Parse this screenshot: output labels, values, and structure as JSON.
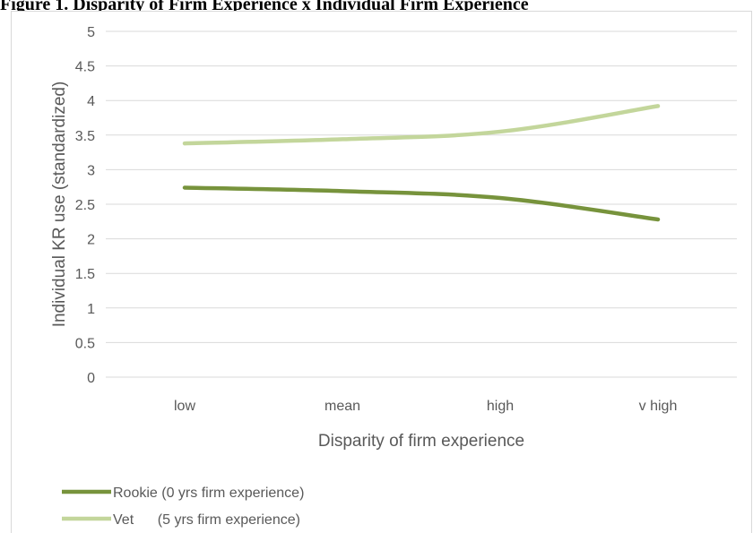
{
  "caption": "Figure 1. Disparity of Firm Experience x Individual Firm Experience",
  "chart_data": {
    "type": "line",
    "categories": [
      "low",
      "mean",
      "high",
      "v high"
    ],
    "series": [
      {
        "name": "Rookie (0 yrs firm experience)",
        "values": [
          2.74,
          2.69,
          2.59,
          2.28
        ],
        "color": "#77933C"
      },
      {
        "name": "Vet      (5 yrs firm experience)",
        "values": [
          3.38,
          3.44,
          3.55,
          3.92
        ],
        "color": "#C3D69B"
      }
    ],
    "xlabel": "Disparity of firm experience",
    "ylabel": "Individual KR use (standardized)",
    "ylim": [
      0,
      5
    ],
    "yticks": [
      "0",
      "0.5",
      "1",
      "1.5",
      "2",
      "2.5",
      "3",
      "3.5",
      "4",
      "4.5",
      "5"
    ],
    "grid": true,
    "gridColor": "#D9D9D9",
    "legend_position": "bottom-left"
  }
}
